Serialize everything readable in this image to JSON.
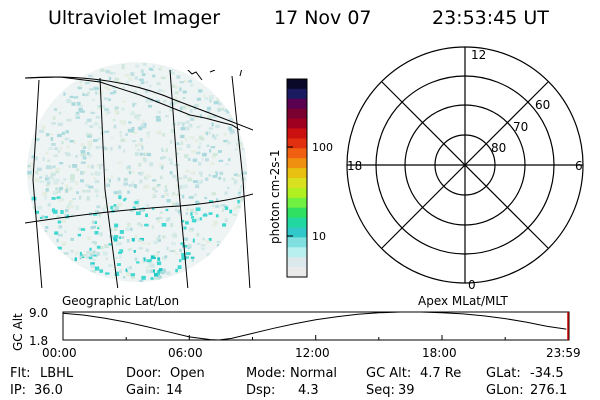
{
  "header": {
    "instrument": "Ultraviolet Imager",
    "date": "17 Nov 07",
    "time": "23:53:45 UT"
  },
  "colorbar": {
    "label": "photon cm-2s-1",
    "tick_labels": [
      "100",
      "10"
    ],
    "colors": [
      "#0a0a28",
      "#1a1a60",
      "#5a0050",
      "#7a0030",
      "#a00020",
      "#cc1010",
      "#e03010",
      "#f06010",
      "#f09010",
      "#e8c010",
      "#d8e020",
      "#b0f020",
      "#70f040",
      "#30e060",
      "#20d8a0",
      "#30c8c8",
      "#80e0e0",
      "#b8f0f0",
      "#dde8ec",
      "#eaeaea"
    ],
    "scale": "log"
  },
  "geo_map": {
    "caption": "Geographic Lat/Lon"
  },
  "polar_plot": {
    "caption": "Apex MLat/MLT",
    "mlt_labels": [
      "12",
      "18",
      "6",
      "0"
    ],
    "lat_labels": [
      "60",
      "70",
      "80"
    ]
  },
  "altitude_panel": {
    "ylabel": "GC Alt",
    "y_ticks": [
      "9.0",
      "1.8"
    ],
    "x_ticks": [
      "00:00",
      "06:00",
      "12:00",
      "18:00",
      "23:59"
    ]
  },
  "chart_data": {
    "type": "line",
    "series": [
      {
        "x_hours": [
          0,
          1,
          2,
          3,
          4,
          5,
          6,
          7,
          7.4,
          8,
          9,
          10,
          11,
          12,
          13,
          14,
          15,
          16,
          17,
          18,
          19,
          20,
          21,
          22,
          23,
          23.9
        ],
        "values": [
          8.7,
          8.2,
          7.4,
          6.4,
          5.2,
          3.9,
          2.6,
          1.9,
          1.8,
          2.2,
          3.5,
          4.8,
          6.0,
          7.0,
          7.8,
          8.4,
          8.8,
          9.0,
          9.0,
          8.8,
          8.5,
          8.0,
          7.3,
          6.4,
          5.3,
          4.6
        ]
      }
    ],
    "xlim": [
      0,
      23.983
    ],
    "ylim": [
      1.8,
      9.0
    ],
    "xlabel": "",
    "ylabel": "GC Alt",
    "grid": false
  },
  "status": {
    "rows": [
      [
        {
          "key": "Flt:",
          "val": "LBHL"
        },
        {
          "key": "Door:",
          "val": "Open"
        },
        {
          "key": "Mode:",
          "val": "Normal"
        },
        {
          "key": "GC Alt:",
          "val": "4.7 Re"
        },
        {
          "key": "GLat:",
          "val": "-34.5"
        }
      ],
      [
        {
          "key": "IP:",
          "val": "36.0"
        },
        {
          "key": "Gain:",
          "val": "14"
        },
        {
          "key": "Dsp:",
          "val": "4.3"
        },
        {
          "key": "Seq:",
          "val": "39"
        },
        {
          "key": "GLon:",
          "val": "276.1"
        }
      ]
    ]
  }
}
